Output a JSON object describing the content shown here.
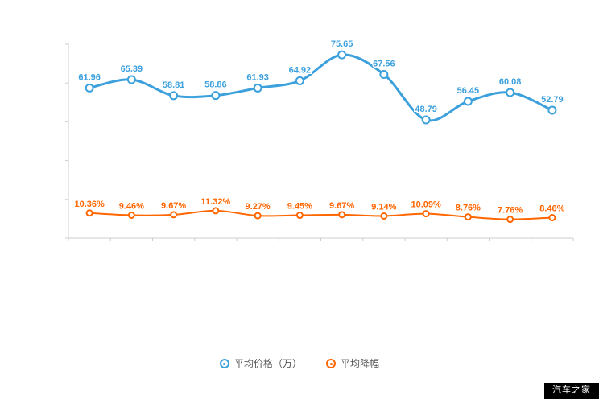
{
  "chart_data": {
    "type": "line",
    "categories": [
      "",
      "",
      "",
      "",
      "",
      "",
      "",
      "",
      "",
      "",
      "",
      ""
    ],
    "x_tick_labels_visible": false,
    "y_tick_labels_visible": false,
    "ylim": [
      0,
      80
    ],
    "grid": false,
    "legend_position": "bottom",
    "axis_color": "#cccccc",
    "series": [
      {
        "name": "平均价格（万）",
        "color": "#3ba0dc",
        "values": [
          61.96,
          65.39,
          58.81,
          58.86,
          61.93,
          64.92,
          75.65,
          67.56,
          48.79,
          56.45,
          60.08,
          52.79
        ],
        "labels": [
          "61.96",
          "65.39",
          "58.81",
          "58.86",
          "61.93",
          "64.92",
          "75.65",
          "67.56",
          "48.79",
          "56.45",
          "60.08",
          "52.79"
        ]
      },
      {
        "name": "平均降幅",
        "color": "#ff6600",
        "values": [
          10.36,
          9.46,
          9.67,
          11.32,
          9.27,
          9.45,
          9.67,
          9.14,
          10.09,
          8.76,
          7.76,
          8.46
        ],
        "labels": [
          "10.36%",
          "9.46%",
          "9.67%",
          "11.32%",
          "9.27%",
          "9.45%",
          "9.67%",
          "9.14%",
          "10.09%",
          "8.76%",
          "7.76%",
          "8.46%"
        ]
      }
    ]
  },
  "legend": {
    "items": [
      {
        "label": "平均价格（万）"
      },
      {
        "label": "平均降幅"
      }
    ]
  },
  "watermark": {
    "text": "汽车之家",
    "bg": "#000000",
    "fg": "#ffffff"
  }
}
